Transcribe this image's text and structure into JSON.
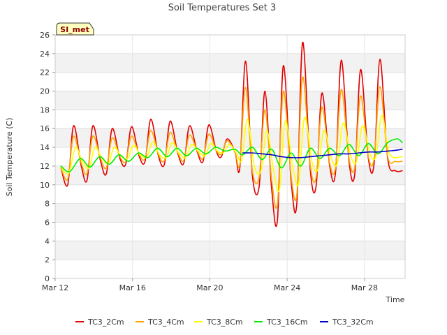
{
  "chart_data": {
    "type": "line",
    "title": "Soil Temperatures Set 3",
    "xlabel": "Time",
    "ylabel": "Soil Temperature (C)",
    "site_label": "SI_met",
    "xlim": [
      12,
      30.1
    ],
    "ylim": [
      0,
      26
    ],
    "y_ticks": [
      0,
      2,
      4,
      6,
      8,
      10,
      12,
      14,
      16,
      18,
      20,
      22,
      24,
      26
    ],
    "x_ticks": [
      {
        "value": 12,
        "label": "Mar 12"
      },
      {
        "value": 16,
        "label": "Mar 16"
      },
      {
        "value": 20,
        "label": "Mar 20"
      },
      {
        "value": 24,
        "label": "Mar 24"
      },
      {
        "value": 28,
        "label": "Mar 28"
      }
    ],
    "grid": true,
    "legend": "bottom",
    "series": [
      {
        "name": "TC3_2Cm",
        "color": "#e00000",
        "x": [
          12.3,
          12.65,
          12.95,
          13.35,
          13.65,
          13.95,
          14.35,
          14.65,
          14.95,
          15.35,
          15.65,
          15.95,
          16.35,
          16.65,
          16.95,
          17.35,
          17.65,
          17.95,
          18.35,
          18.65,
          18.95,
          19.35,
          19.65,
          19.95,
          20.35,
          20.6,
          20.9,
          21.3,
          21.55,
          21.85,
          22.2,
          22.55,
          22.85,
          23.2,
          23.5,
          23.8,
          24.2,
          24.5,
          24.8,
          25.2,
          25.5,
          25.8,
          26.2,
          26.5,
          26.8,
          27.2,
          27.5,
          27.8,
          28.2,
          28.5,
          28.8,
          29.2,
          29.6,
          29.95
        ],
        "y": [
          11.8,
          10.0,
          16.3,
          12.0,
          10.5,
          16.3,
          12.5,
          11.2,
          16.0,
          12.8,
          12.2,
          16.2,
          13.0,
          12.5,
          17.0,
          13.0,
          12.2,
          16.8,
          13.3,
          12.3,
          16.3,
          13.5,
          12.5,
          16.4,
          13.5,
          13.0,
          14.9,
          13.5,
          11.8,
          23.2,
          11.0,
          9.8,
          20.0,
          9.5,
          6.3,
          22.7,
          10.5,
          8.0,
          25.2,
          11.5,
          9.9,
          19.8,
          12.0,
          11.3,
          23.3,
          12.5,
          11.2,
          22.3,
          12.8,
          12.3,
          23.4,
          12.8,
          11.5,
          11.5
        ]
      },
      {
        "name": "TC3_4Cm",
        "color": "#ffa500",
        "x": [
          12.3,
          12.65,
          12.95,
          13.35,
          13.65,
          13.95,
          14.35,
          14.65,
          14.95,
          15.35,
          15.65,
          15.95,
          16.35,
          16.65,
          16.95,
          17.35,
          17.65,
          17.95,
          18.35,
          18.65,
          18.95,
          19.35,
          19.65,
          19.95,
          20.35,
          20.6,
          20.9,
          21.3,
          21.55,
          21.85,
          22.2,
          22.55,
          22.85,
          23.2,
          23.5,
          23.8,
          24.2,
          24.5,
          24.8,
          25.2,
          25.5,
          25.8,
          26.2,
          26.5,
          26.8,
          27.2,
          27.5,
          27.8,
          28.2,
          28.5,
          28.8,
          29.2,
          29.6,
          29.95
        ],
        "y": [
          11.8,
          10.6,
          15.2,
          12.3,
          11.2,
          15.2,
          12.8,
          11.8,
          15.0,
          13.0,
          12.5,
          15.2,
          13.2,
          12.8,
          15.8,
          13.2,
          12.6,
          15.6,
          13.4,
          12.6,
          15.3,
          13.6,
          12.8,
          15.4,
          13.6,
          13.3,
          14.7,
          13.5,
          12.2,
          20.4,
          11.5,
          10.8,
          18.0,
          10.5,
          8.0,
          20.0,
          11.0,
          9.0,
          21.5,
          12.0,
          10.8,
          18.3,
          12.3,
          11.8,
          20.2,
          12.8,
          11.9,
          19.5,
          13.0,
          12.8,
          20.5,
          13.0,
          12.5,
          12.5
        ]
      },
      {
        "name": "TC3_8Cm",
        "color": "#ffff00",
        "x": [
          12.3,
          12.7,
          13.05,
          13.4,
          13.75,
          14.05,
          14.4,
          14.75,
          15.05,
          15.4,
          15.75,
          16.05,
          16.4,
          16.75,
          17.05,
          17.4,
          17.75,
          18.05,
          18.4,
          18.75,
          19.05,
          19.4,
          19.75,
          20.05,
          20.4,
          20.7,
          21.0,
          21.35,
          21.65,
          21.95,
          22.3,
          22.65,
          22.95,
          23.3,
          23.6,
          23.9,
          24.3,
          24.6,
          24.9,
          25.3,
          25.6,
          25.9,
          26.3,
          26.6,
          26.9,
          27.3,
          27.6,
          27.9,
          28.3,
          28.6,
          28.9,
          29.3,
          29.95
        ],
        "y": [
          11.9,
          11.2,
          14.0,
          12.5,
          11.8,
          14.0,
          12.9,
          12.3,
          14.0,
          13.1,
          12.8,
          14.2,
          13.2,
          13.0,
          14.6,
          13.2,
          12.9,
          14.5,
          13.4,
          12.9,
          14.3,
          13.6,
          13.1,
          14.4,
          13.6,
          13.4,
          14.3,
          13.5,
          12.6,
          17.0,
          12.0,
          11.5,
          15.8,
          11.5,
          9.5,
          16.8,
          11.8,
          10.2,
          17.2,
          12.3,
          11.7,
          15.8,
          12.7,
          12.3,
          16.6,
          13.0,
          12.5,
          16.3,
          13.2,
          13.1,
          17.4,
          13.3,
          13.0
        ]
      },
      {
        "name": "TC3_16Cm",
        "color": "#00ee00",
        "x": [
          12.3,
          12.75,
          13.3,
          13.8,
          14.3,
          14.8,
          15.3,
          15.8,
          16.3,
          16.8,
          17.3,
          17.8,
          18.3,
          18.8,
          19.3,
          19.8,
          20.3,
          20.8,
          21.3,
          21.7,
          22.2,
          22.7,
          23.2,
          23.7,
          24.2,
          24.7,
          25.2,
          25.7,
          26.2,
          26.7,
          27.2,
          27.7,
          28.2,
          28.7,
          29.2,
          29.7,
          29.95
        ],
        "y": [
          12.0,
          11.4,
          12.8,
          11.9,
          13.0,
          12.2,
          13.2,
          12.5,
          13.4,
          12.9,
          13.9,
          13.0,
          13.9,
          13.1,
          13.9,
          13.3,
          14.0,
          13.6,
          13.8,
          13.2,
          14.0,
          12.7,
          13.8,
          11.8,
          13.4,
          12.0,
          13.9,
          12.8,
          13.9,
          13.1,
          14.3,
          13.1,
          14.4,
          13.3,
          14.5,
          14.9,
          14.5
        ]
      },
      {
        "name": "TC3_32Cm",
        "color": "#0000cc",
        "x": [
          21.7,
          22.2,
          22.7,
          23.2,
          23.7,
          24.2,
          24.7,
          25.2,
          25.7,
          26.2,
          26.7,
          27.2,
          27.7,
          28.2,
          28.7,
          29.2,
          29.7,
          29.95
        ],
        "y": [
          13.4,
          13.4,
          13.3,
          13.2,
          13.0,
          12.9,
          12.9,
          13.0,
          13.1,
          13.2,
          13.3,
          13.3,
          13.4,
          13.5,
          13.5,
          13.6,
          13.7,
          13.8
        ]
      }
    ]
  }
}
